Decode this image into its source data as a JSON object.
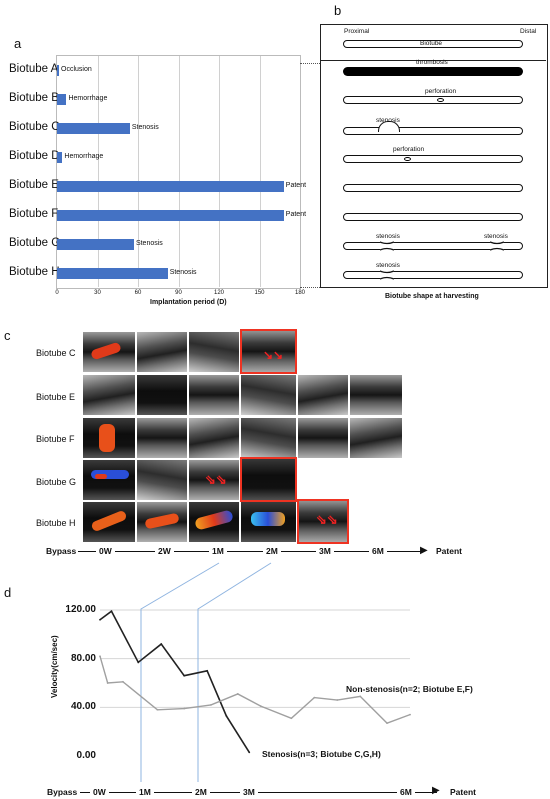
{
  "panels": {
    "a": "a",
    "b": "b",
    "c": "c",
    "d": "d"
  },
  "panel_a": {
    "xlabel": "Implantation period (D)",
    "ticks": [
      "0",
      "30",
      "60",
      "90",
      "120",
      "150",
      "180"
    ],
    "rows": [
      {
        "name": "Biotube A",
        "value": 1,
        "label": "Occlusion"
      },
      {
        "name": "Biotube B",
        "value": 7,
        "label": "Hemorrhage"
      },
      {
        "name": "Biotube C",
        "value": 54,
        "label": "Stenosis"
      },
      {
        "name": "Biotube D",
        "value": 4,
        "label": "Hemorrhage"
      },
      {
        "name": "Biotube E",
        "value": 168,
        "label": "Patent"
      },
      {
        "name": "Biotube F",
        "value": 168,
        "label": "Patent"
      },
      {
        "name": "Biotube G",
        "value": 57,
        "label": "Stenosis"
      },
      {
        "name": "Biotube H",
        "value": 82,
        "label": "Stenosis"
      }
    ]
  },
  "panel_b": {
    "proximal": "Proximal",
    "distal": "Distal",
    "tube_label": "Biotube",
    "caption": "Biotube shape at harvesting",
    "labels": {
      "thrombosis": "thrombosis",
      "perforation": "perforation",
      "stenosis": "stenosis"
    }
  },
  "panel_c": {
    "rows": [
      "Biotube C",
      "Biotube E",
      "Biotube F",
      "Biotube G",
      "Biotube H"
    ],
    "timeline": {
      "bypass": "Bypass",
      "points": [
        "0W",
        "2W",
        "1M",
        "2M",
        "3M",
        "6M"
      ],
      "end": "Patent"
    }
  },
  "chart_data": {
    "type": "line",
    "ylabel": "Velocity(cm/sec)",
    "ylim": [
      0,
      120
    ],
    "yticks": [
      "0.00",
      "40.00",
      "80.00",
      "120.00"
    ],
    "x_axis": {
      "bypass": "Bypass",
      "points": [
        "0W",
        "1M",
        "2M",
        "3M",
        "6M"
      ],
      "end": "Patent"
    },
    "series": [
      {
        "name": "Stenosis(n=3; Biotube C,G,H)",
        "color": "#222222",
        "x": [
          0,
          0.3,
          1.0,
          1.6,
          2.2,
          2.8,
          3.3,
          3.9
        ],
        "values": [
          112,
          119,
          77,
          92,
          66,
          70,
          33,
          3
        ]
      },
      {
        "name": "Non-stenosis(n=2; Biotube E,F)",
        "color": "#a0a0a0",
        "x": [
          0,
          0.2,
          0.6,
          1.5,
          2.2,
          2.9,
          3.6,
          4.2,
          5.0,
          5.6,
          6.2,
          6.8,
          7.5,
          8.1
        ],
        "values": [
          82,
          60,
          61,
          38,
          39,
          42,
          51,
          41,
          31,
          48,
          46,
          49,
          27,
          34
        ]
      }
    ]
  }
}
